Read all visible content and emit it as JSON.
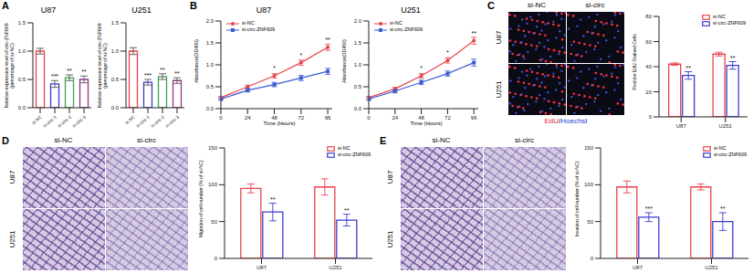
{
  "chart_data": [
    {
      "panel": "A",
      "type": "bar",
      "title": "U87",
      "y_label": "Relative expression level of circ-ZNF609 (percentage of si-NC)",
      "categories": [
        "si-NC",
        "si-circ-1",
        "si-circ-2",
        "si-circ-3"
      ],
      "values": [
        1.0,
        0.42,
        0.53,
        0.5
      ],
      "errors": [
        0.05,
        0.06,
        0.05,
        0.06
      ],
      "significance": [
        null,
        "***",
        "**",
        "**"
      ],
      "colors": [
        "#e8434b",
        "#3b3bd1",
        "#3aa655",
        "#8a3a8a"
      ],
      "ylim": [
        0,
        1.5
      ],
      "yticks": [
        {
          "value": 0,
          "label": "0.0"
        },
        {
          "value": 0.5,
          "label": "0.5"
        },
        {
          "value": 1,
          "label": "1.0"
        },
        {
          "value": 1.5,
          "label": "1.5"
        }
      ]
    },
    {
      "type": "bar",
      "title": "U251",
      "y_label": "Relative expression level of circ-ZNF609 (percentage of si-NC)",
      "categories": [
        "si-NC",
        "si-circ-1",
        "si-circ-2",
        "si-circ-3"
      ],
      "values": [
        1.0,
        0.45,
        0.55,
        0.48
      ],
      "errors": [
        0.06,
        0.05,
        0.05,
        0.05
      ],
      "significance": [
        null,
        "***",
        "**",
        "**"
      ],
      "colors": [
        "#e8434b",
        "#3b3bd1",
        "#3aa655",
        "#8a3a8a"
      ],
      "ylim": [
        0,
        1.5
      ],
      "yticks": [
        {
          "value": 0,
          "label": "0.0"
        },
        {
          "value": 0.5,
          "label": "0.5"
        },
        {
          "value": 1,
          "label": "1.0"
        },
        {
          "value": 1.5,
          "label": "1.5"
        }
      ]
    },
    {
      "panel": "B",
      "type": "line",
      "title": "U87",
      "x_label": "Time (Hours)",
      "y_label": "Absorbance(OD450)",
      "x": [
        0,
        24,
        48,
        72,
        96
      ],
      "xlim": [
        0,
        100
      ],
      "xticks": [
        0,
        24,
        48,
        72,
        96
      ],
      "ylim": [
        0,
        2
      ],
      "yticks": [
        {
          "value": 0,
          "label": "0.0"
        },
        {
          "value": 0.5,
          "label": "0.5"
        },
        {
          "value": 1,
          "label": "1.0"
        },
        {
          "value": 1.5,
          "label": "1.5"
        },
        {
          "value": 2,
          "label": "2.0"
        }
      ],
      "legend": "upper left",
      "series": [
        {
          "name": "si-NC",
          "color": "#e8434b",
          "marker": "circle",
          "values": [
            0.25,
            0.5,
            0.75,
            1.05,
            1.4
          ],
          "errors": [
            0.03,
            0.04,
            0.05,
            0.06,
            0.07
          ],
          "significance": [
            null,
            null,
            "*",
            "*",
            "**"
          ]
        },
        {
          "name": "si-circ-ZNF609",
          "color": "#3b5bd1",
          "marker": "square",
          "values": [
            0.22,
            0.42,
            0.55,
            0.7,
            0.85
          ],
          "errors": [
            0.03,
            0.04,
            0.05,
            0.06,
            0.07
          ]
        }
      ]
    },
    {
      "type": "line",
      "title": "U251",
      "x_label": "Time (Hours)",
      "y_label": "Absorbance(OD450)",
      "x": [
        0,
        24,
        48,
        72,
        96
      ],
      "xlim": [
        0,
        100
      ],
      "xticks": [
        0,
        24,
        48,
        72,
        96
      ],
      "ylim": [
        0,
        2
      ],
      "yticks": [
        {
          "value": 0,
          "label": "0.0"
        },
        {
          "value": 0.5,
          "label": "0.5"
        },
        {
          "value": 1,
          "label": "1.0"
        },
        {
          "value": 1.5,
          "label": "1.5"
        },
        {
          "value": 2,
          "label": "2.0"
        }
      ],
      "legend": "upper left",
      "series": [
        {
          "name": "si-NC",
          "color": "#e8434b",
          "marker": "circle",
          "values": [
            0.25,
            0.45,
            0.75,
            1.1,
            1.55
          ],
          "errors": [
            0.03,
            0.04,
            0.05,
            0.06,
            0.08
          ],
          "significance": [
            null,
            null,
            "*",
            "*",
            "**"
          ]
        },
        {
          "name": "si-circ-ZNF609",
          "color": "#3b5bd1",
          "marker": "square",
          "values": [
            0.22,
            0.4,
            0.6,
            0.8,
            1.05
          ],
          "errors": [
            0.03,
            0.04,
            0.05,
            0.06,
            0.08
          ]
        }
      ]
    },
    {
      "type": "bar",
      "y_label": "Positive EdU Stained Cells",
      "categories": [
        "U87",
        "U251"
      ],
      "ylim": [
        0,
        80
      ],
      "yticks": [
        0,
        20,
        40,
        60,
        80
      ],
      "legend": "upper right",
      "series": [
        {
          "name": "si-NC",
          "color": "#e8434b",
          "values": [
            42,
            50
          ],
          "errors": [
            1,
            1.5
          ]
        },
        {
          "name": "si-circ-ZNF609",
          "color": "#3b3bd1",
          "values": [
            33,
            41
          ],
          "errors": [
            3,
            3
          ],
          "significance": [
            "**",
            "**"
          ]
        }
      ]
    },
    {
      "type": "bar",
      "y_label": "Migration of cell number (% of si-NC)",
      "categories": [
        "U87",
        "U251"
      ],
      "ylim": [
        0,
        150
      ],
      "yticks": [
        0,
        50,
        100,
        150
      ],
      "legend": "upper right",
      "series": [
        {
          "name": "si-NC",
          "color": "#e8434b",
          "values": [
            95,
            97
          ],
          "errors": [
            6,
            11
          ]
        },
        {
          "name": "si-circ-ZNF609",
          "color": "#3b3bd1",
          "values": [
            63,
            52
          ],
          "errors": [
            12,
            8
          ],
          "significance": [
            "**",
            "**"
          ]
        }
      ]
    },
    {
      "type": "bar",
      "y_label": "Invasion of cell number (% of si-NC)",
      "categories": [
        "U87",
        "U251"
      ],
      "ylim": [
        0,
        150
      ],
      "yticks": [
        0,
        50,
        100,
        150
      ],
      "legend": "upper right",
      "series": [
        {
          "name": "si-NC",
          "color": "#e8434b",
          "values": [
            97,
            97
          ],
          "errors": [
            8,
            4
          ]
        },
        {
          "name": "si-circ-ZNF609",
          "color": "#3b3bd1",
          "values": [
            56,
            50
          ],
          "errors": [
            6,
            12
          ],
          "significance": [
            "***",
            "**"
          ]
        }
      ]
    }
  ],
  "images": [
    {
      "panel": "C",
      "kind": "fluorescence",
      "columns": [
        "si-NC",
        "si-circ"
      ],
      "rows": [
        "U87",
        "U251"
      ],
      "caption": "EdU/Hoechst"
    },
    {
      "panel": "D",
      "kind": "transwell",
      "columns": [
        "si-NC",
        "si-circ"
      ],
      "rows": [
        "U87",
        "U251"
      ]
    },
    {
      "panel": "E",
      "kind": "transwell",
      "columns": [
        "si-NC",
        "si-circ"
      ],
      "rows": [
        "U87",
        "U251"
      ]
    }
  ]
}
